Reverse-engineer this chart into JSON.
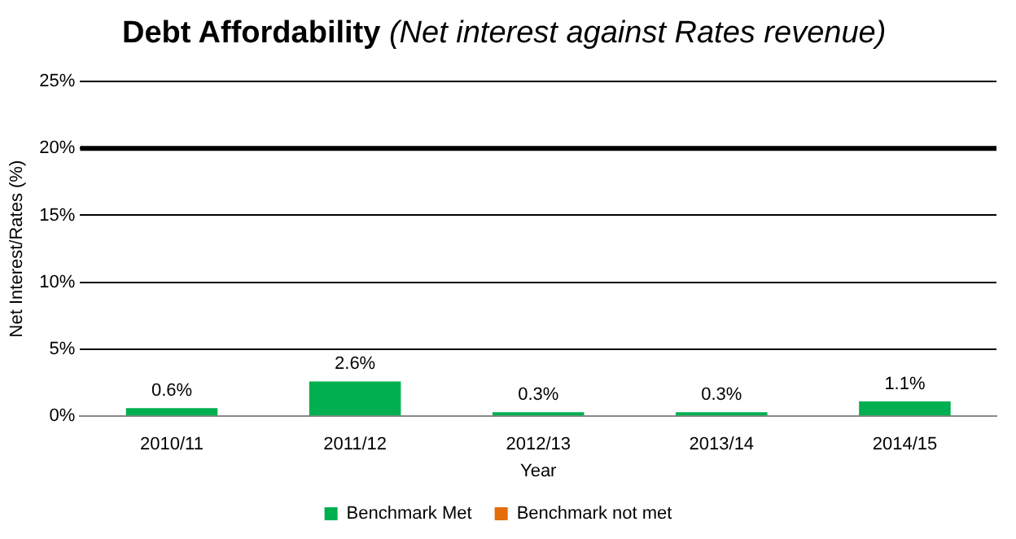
{
  "chart_data": {
    "type": "bar",
    "title": "Debt Affordability",
    "subtitle": "(Net interest against Rates revenue)",
    "xlabel": "Year",
    "ylabel": "Net Interest/Rates (%)",
    "categories": [
      "2010/11",
      "2011/12",
      "2012/13",
      "2013/14",
      "2014/15"
    ],
    "series": [
      {
        "name": "Benchmark Met",
        "color": "#00b050",
        "values": [
          0.6,
          2.6,
          0.3,
          0.3,
          1.1
        ],
        "value_labels": [
          "0.6%",
          "2.6%",
          "0.3%",
          "0.3%",
          "1.1%"
        ]
      },
      {
        "name": "Benchmark not met",
        "color": "#e46c0a",
        "values": [
          null,
          null,
          null,
          null,
          null
        ]
      }
    ],
    "stacked": true,
    "ylim": [
      0,
      25
    ],
    "yticks": [
      {
        "value": 0,
        "label": "0%"
      },
      {
        "value": 5,
        "label": "5%"
      },
      {
        "value": 10,
        "label": "10%"
      },
      {
        "value": 15,
        "label": "15%"
      },
      {
        "value": 20,
        "label": "20%"
      },
      {
        "value": 25,
        "label": "25%"
      }
    ],
    "ref_lines": [
      {
        "axis": "y",
        "value": 20,
        "color": "#000000"
      }
    ],
    "grid": "y",
    "legend": "bottom"
  }
}
